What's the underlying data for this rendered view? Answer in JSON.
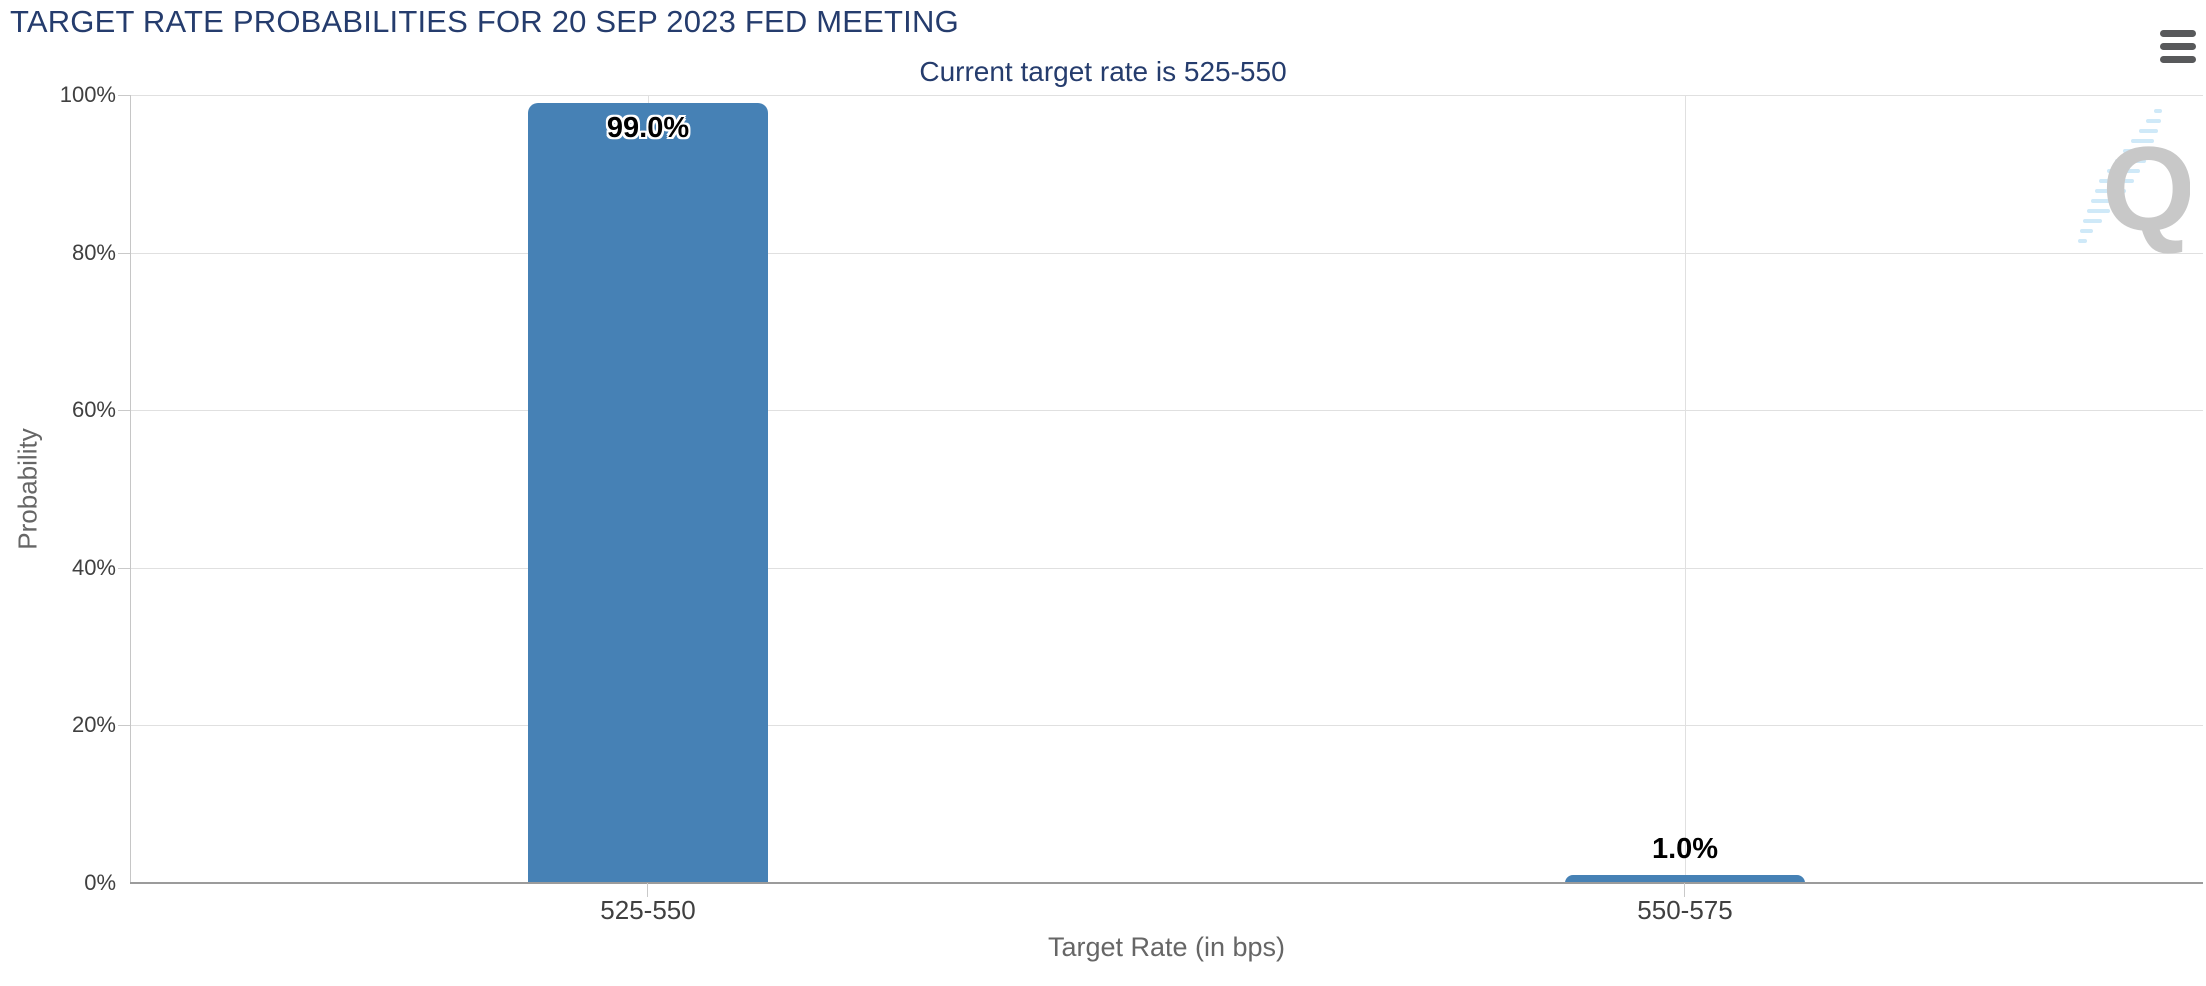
{
  "chart_data": {
    "type": "bar",
    "title": "TARGET RATE PROBABILITIES FOR 20 SEP 2023 FED MEETING",
    "subtitle": "Current target rate is 525-550",
    "xlabel": "Target Rate (in bps)",
    "ylabel": "Probability",
    "categories": [
      "525-550",
      "550-575"
    ],
    "values": [
      99.0,
      1.0
    ],
    "value_labels": [
      "99.0%",
      "1.0%"
    ],
    "ylim": [
      0,
      100
    ],
    "ytick_labels": [
      "100%",
      "80%",
      "60%",
      "40%",
      "20%",
      "0%"
    ],
    "grid": true,
    "legend_position": "none",
    "bar_color": "#4681b5",
    "title_color": "#253c6d",
    "watermark_letter": "Q",
    "watermark_color": "#c8c8c8",
    "watermark_accent_color": "#cfe9f8"
  },
  "toolbar": {
    "menu_icon": "hamburger-icon"
  }
}
